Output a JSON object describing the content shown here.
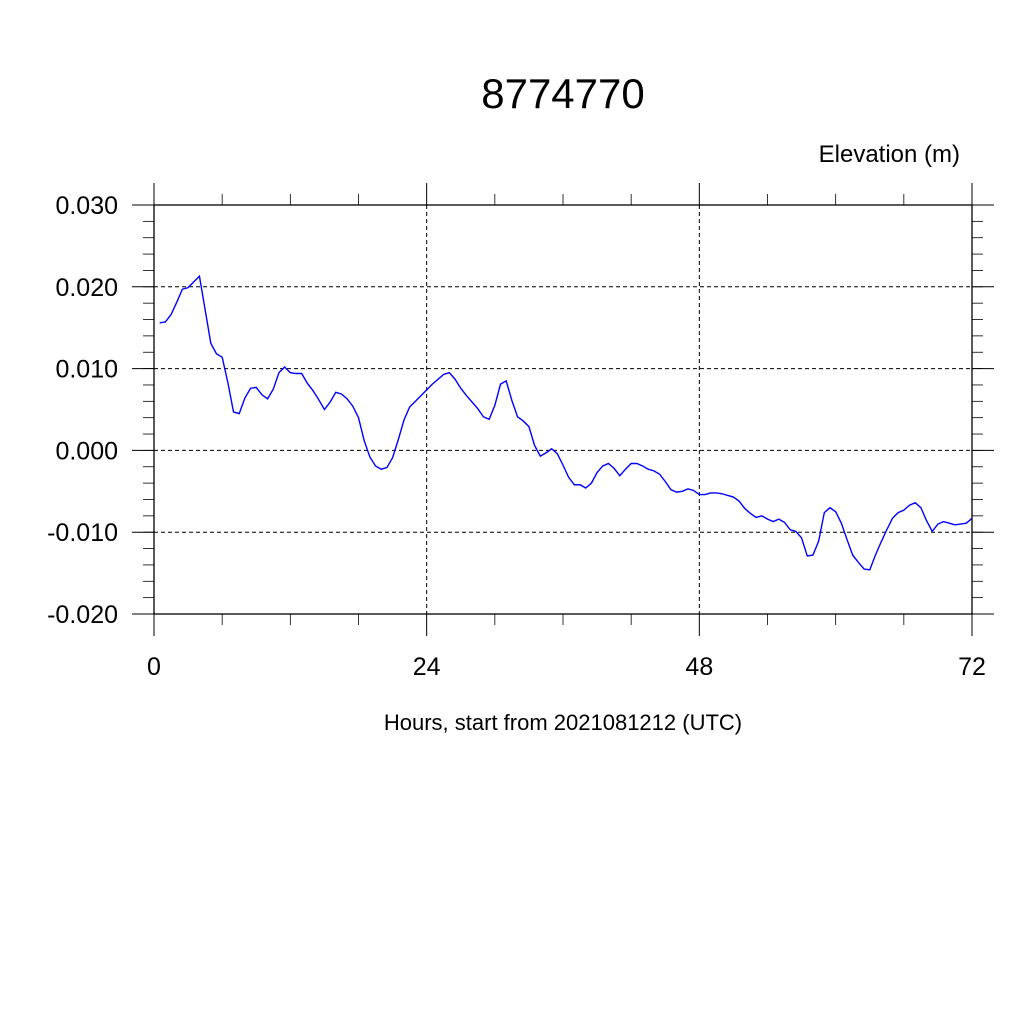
{
  "chart_data": {
    "type": "line",
    "title": "8774770",
    "ylabel": "Elevation (m)",
    "xlabel": "Hours, start from 2021081212 (UTC)",
    "xlim": [
      0,
      72
    ],
    "ylim": [
      -0.02,
      0.03
    ],
    "x_ticks": [
      0,
      24,
      48,
      72
    ],
    "x_tick_labels": [
      "0",
      "24",
      "48",
      "72"
    ],
    "y_ticks": [
      -0.02,
      -0.01,
      0.0,
      0.01,
      0.02,
      0.03
    ],
    "y_tick_labels": [
      "-0.020",
      "-0.010",
      "0.000",
      "0.010",
      "0.020",
      "0.030"
    ],
    "grid": true,
    "line_color": "#0000ff",
    "series": [
      {
        "x": [
          0.5,
          1.0,
          1.5,
          2.0,
          2.5,
          3.0,
          3.5,
          4.0,
          4.5,
          5.0,
          5.5,
          6.0,
          6.5,
          7.0,
          7.5,
          8.0,
          8.5,
          9.0,
          9.5,
          10.0,
          10.5,
          11.0,
          11.5,
          12.0,
          12.5,
          13.0,
          13.5,
          14.0,
          14.5,
          15.0,
          15.5,
          16.0,
          16.5,
          17.0,
          17.5,
          18.0,
          18.5,
          19.0,
          19.5,
          20.0,
          20.5,
          21.0,
          21.5,
          22.0,
          22.5,
          23.0,
          23.5,
          24.0,
          24.5,
          25.0,
          25.5,
          26.0,
          26.5,
          27.0,
          27.5,
          28.0,
          28.5,
          29.0,
          29.5,
          30.0,
          30.5,
          31.0,
          31.5,
          32.0,
          32.5,
          33.0,
          33.5,
          34.0,
          34.5,
          35.0,
          35.5,
          36.0,
          36.5,
          37.0,
          37.5,
          38.0,
          38.5,
          39.0,
          39.5,
          40.0,
          40.5,
          41.0,
          41.5,
          42.0,
          42.5,
          43.0,
          43.5,
          44.0,
          44.5,
          45.0,
          45.5,
          46.0,
          46.5,
          47.0,
          47.5,
          48.0,
          48.5,
          49.0,
          49.5,
          50.0,
          50.5,
          51.0,
          51.5,
          52.0,
          52.5,
          53.0,
          53.5,
          54.0,
          54.5,
          55.0,
          55.5,
          56.0,
          56.5,
          57.0,
          57.5,
          58.0,
          58.5,
          59.0,
          59.5,
          60.0,
          60.5,
          61.0,
          61.5,
          62.0,
          62.5,
          63.0,
          63.5,
          64.0,
          64.5,
          65.0,
          65.5,
          66.0,
          66.5,
          67.0,
          67.5,
          68.0,
          68.5,
          69.0,
          69.5,
          70.0,
          70.5,
          71.0,
          71.5,
          72.0
        ],
        "y": [
          0.0156,
          0.0157,
          0.0166,
          0.0181,
          0.0197,
          0.0199,
          0.0206,
          0.0213,
          0.0172,
          0.0131,
          0.0118,
          0.0114,
          0.0083,
          0.0047,
          0.0045,
          0.0064,
          0.0076,
          0.0077,
          0.0068,
          0.0063,
          0.0075,
          0.0095,
          0.0102,
          0.0095,
          0.0094,
          0.0094,
          0.0082,
          0.0073,
          0.0062,
          0.005,
          0.0059,
          0.0071,
          0.0069,
          0.0063,
          0.0054,
          0.004,
          0.0012,
          -0.0008,
          -0.0019,
          -0.0023,
          -0.0021,
          -0.0009,
          0.0013,
          0.0037,
          0.0053,
          0.006,
          0.0067,
          0.0074,
          0.0081,
          0.0087,
          0.0093,
          0.0095,
          0.0087,
          0.0076,
          0.0067,
          0.0059,
          0.0051,
          0.0041,
          0.0038,
          0.0055,
          0.0081,
          0.0085,
          0.0061,
          0.0041,
          0.0036,
          0.0029,
          0.0006,
          -0.0007,
          -0.0003,
          0.0002,
          -0.0004,
          -0.0018,
          -0.0033,
          -0.0042,
          -0.0042,
          -0.0046,
          -0.004,
          -0.0027,
          -0.0019,
          -0.0016,
          -0.0022,
          -0.0031,
          -0.0023,
          -0.0016,
          -0.0016,
          -0.0019,
          -0.0023,
          -0.0025,
          -0.0029,
          -0.0038,
          -0.0048,
          -0.0051,
          -0.005,
          -0.0047,
          -0.0049,
          -0.0054,
          -0.0054,
          -0.0052,
          -0.0052,
          -0.0053,
          -0.0055,
          -0.0057,
          -0.0062,
          -0.0071,
          -0.0077,
          -0.0082,
          -0.008,
          -0.0084,
          -0.0087,
          -0.0084,
          -0.0088,
          -0.0097,
          -0.0099,
          -0.0107,
          -0.0129,
          -0.0128,
          -0.0111,
          -0.0076,
          -0.007,
          -0.0075,
          -0.0089,
          -0.0109,
          -0.0128,
          -0.0137,
          -0.0145,
          -0.0146,
          -0.0128,
          -0.0112,
          -0.0097,
          -0.0083,
          -0.0076,
          -0.0073,
          -0.0067,
          -0.0064,
          -0.007,
          -0.0086,
          -0.0099,
          -0.009,
          -0.0087,
          -0.0089,
          -0.0091,
          -0.009,
          -0.0089,
          -0.0083
        ]
      }
    ]
  }
}
